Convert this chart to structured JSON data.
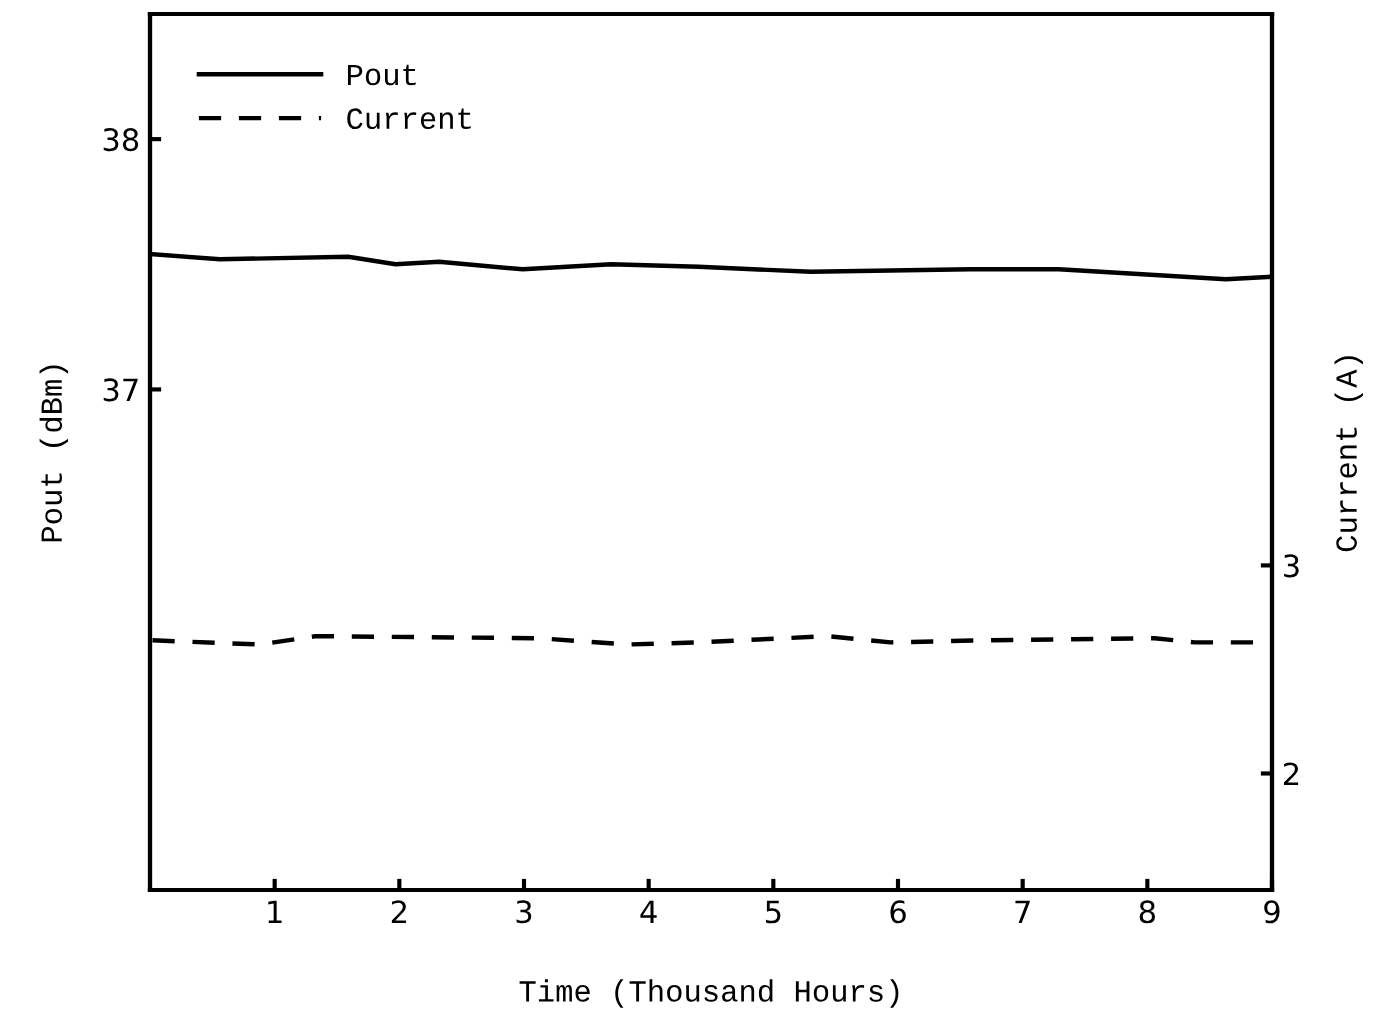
{
  "chart_data": {
    "type": "line",
    "xlabel": "Time (Thousand Hours)",
    "ylabel": "Pout (dBm)",
    "y2label": "Current (A)",
    "xlim": [
      0,
      9
    ],
    "xticks": [
      1,
      2,
      3,
      4,
      5,
      6,
      7,
      8,
      9
    ],
    "ylim": [
      35,
      38.5
    ],
    "yticks": [
      37,
      38
    ],
    "y2lim": [
      1.44,
      5.65
    ],
    "y2ticks": [
      2,
      3
    ],
    "legend": "top left",
    "grid": false,
    "series": [
      {
        "name": "Pout",
        "color": "#000000",
        "line_style": "solid",
        "x": [
          0.02,
          0.56,
          1.59,
          1.97,
          2.32,
          2.99,
          3.7,
          4.4,
          5.3,
          6.58,
          7.29,
          8.63,
          9.0
        ],
        "values": [
          37.54,
          37.52,
          37.53,
          37.5,
          37.51,
          37.48,
          37.5,
          37.49,
          37.47,
          37.48,
          37.48,
          37.44,
          37.45
        ]
      },
      {
        "name": "Current",
        "color": "#000000",
        "line_style": "dashed",
        "axis": "y2",
        "x": [
          0.02,
          0.88,
          1.33,
          3.12,
          3.83,
          4.4,
          5.43,
          5.94,
          6.71,
          8.06,
          8.38,
          9.0
        ],
        "values": [
          2.64,
          2.62,
          2.66,
          2.65,
          2.62,
          2.63,
          2.66,
          2.63,
          2.64,
          2.65,
          2.63,
          2.63
        ]
      }
    ]
  }
}
